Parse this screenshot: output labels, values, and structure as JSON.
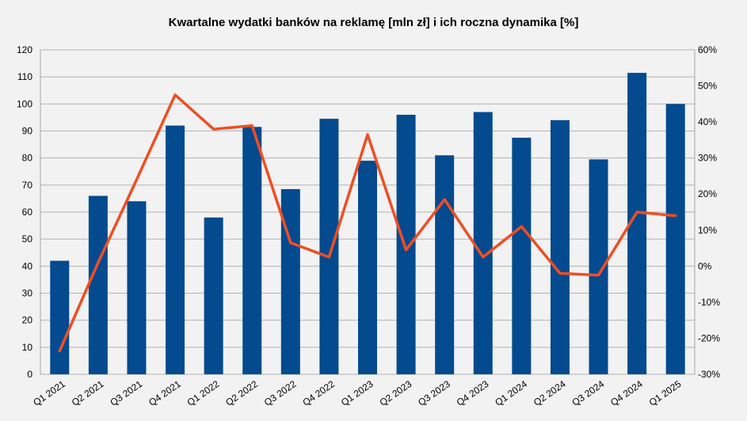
{
  "chart_data": {
    "type": "bar",
    "title": "Kwartalne wydatki banków na reklamę [mln zł] i ich roczna dynamika [%]",
    "categories": [
      "Q1 2021",
      "Q2 2021",
      "Q3 2021",
      "Q4 2021",
      "Q1 2022",
      "Q2 2022",
      "Q3 2022",
      "Q4 2022",
      "Q1 2023",
      "Q2 2023",
      "Q3 2023",
      "Q4 2023",
      "Q1 2024",
      "Q2 2024",
      "Q3 2024",
      "Q4 2024",
      "Q1 2025"
    ],
    "series": [
      {
        "type": "bar",
        "axis": "left",
        "color": "#034a8f",
        "values": [
          42,
          66,
          64,
          92,
          58,
          91.5,
          68.5,
          94.5,
          79,
          96,
          81,
          97,
          87.5,
          94,
          79.5,
          111.5,
          100
        ]
      },
      {
        "type": "line",
        "axis": "right",
        "color": "#f04e23",
        "values": [
          -23.5,
          1,
          24,
          47.5,
          38,
          39,
          6.5,
          2.5,
          36.5,
          4.5,
          18.5,
          2.5,
          11,
          -2,
          -2.5,
          15,
          14
        ]
      }
    ],
    "y_left": {
      "min": 0,
      "max": 120,
      "step": 10,
      "tick_labels": [
        "0",
        "10",
        "20",
        "30",
        "40",
        "50",
        "60",
        "70",
        "80",
        "90",
        "100",
        "110",
        "120"
      ]
    },
    "y_right": {
      "min": -30,
      "max": 60,
      "step": 10,
      "tick_labels": [
        "-30%",
        "-20%",
        "-10%",
        "0%",
        "10%",
        "20%",
        "30%",
        "40%",
        "50%",
        "60%"
      ]
    },
    "grid": true,
    "legend": "none"
  }
}
